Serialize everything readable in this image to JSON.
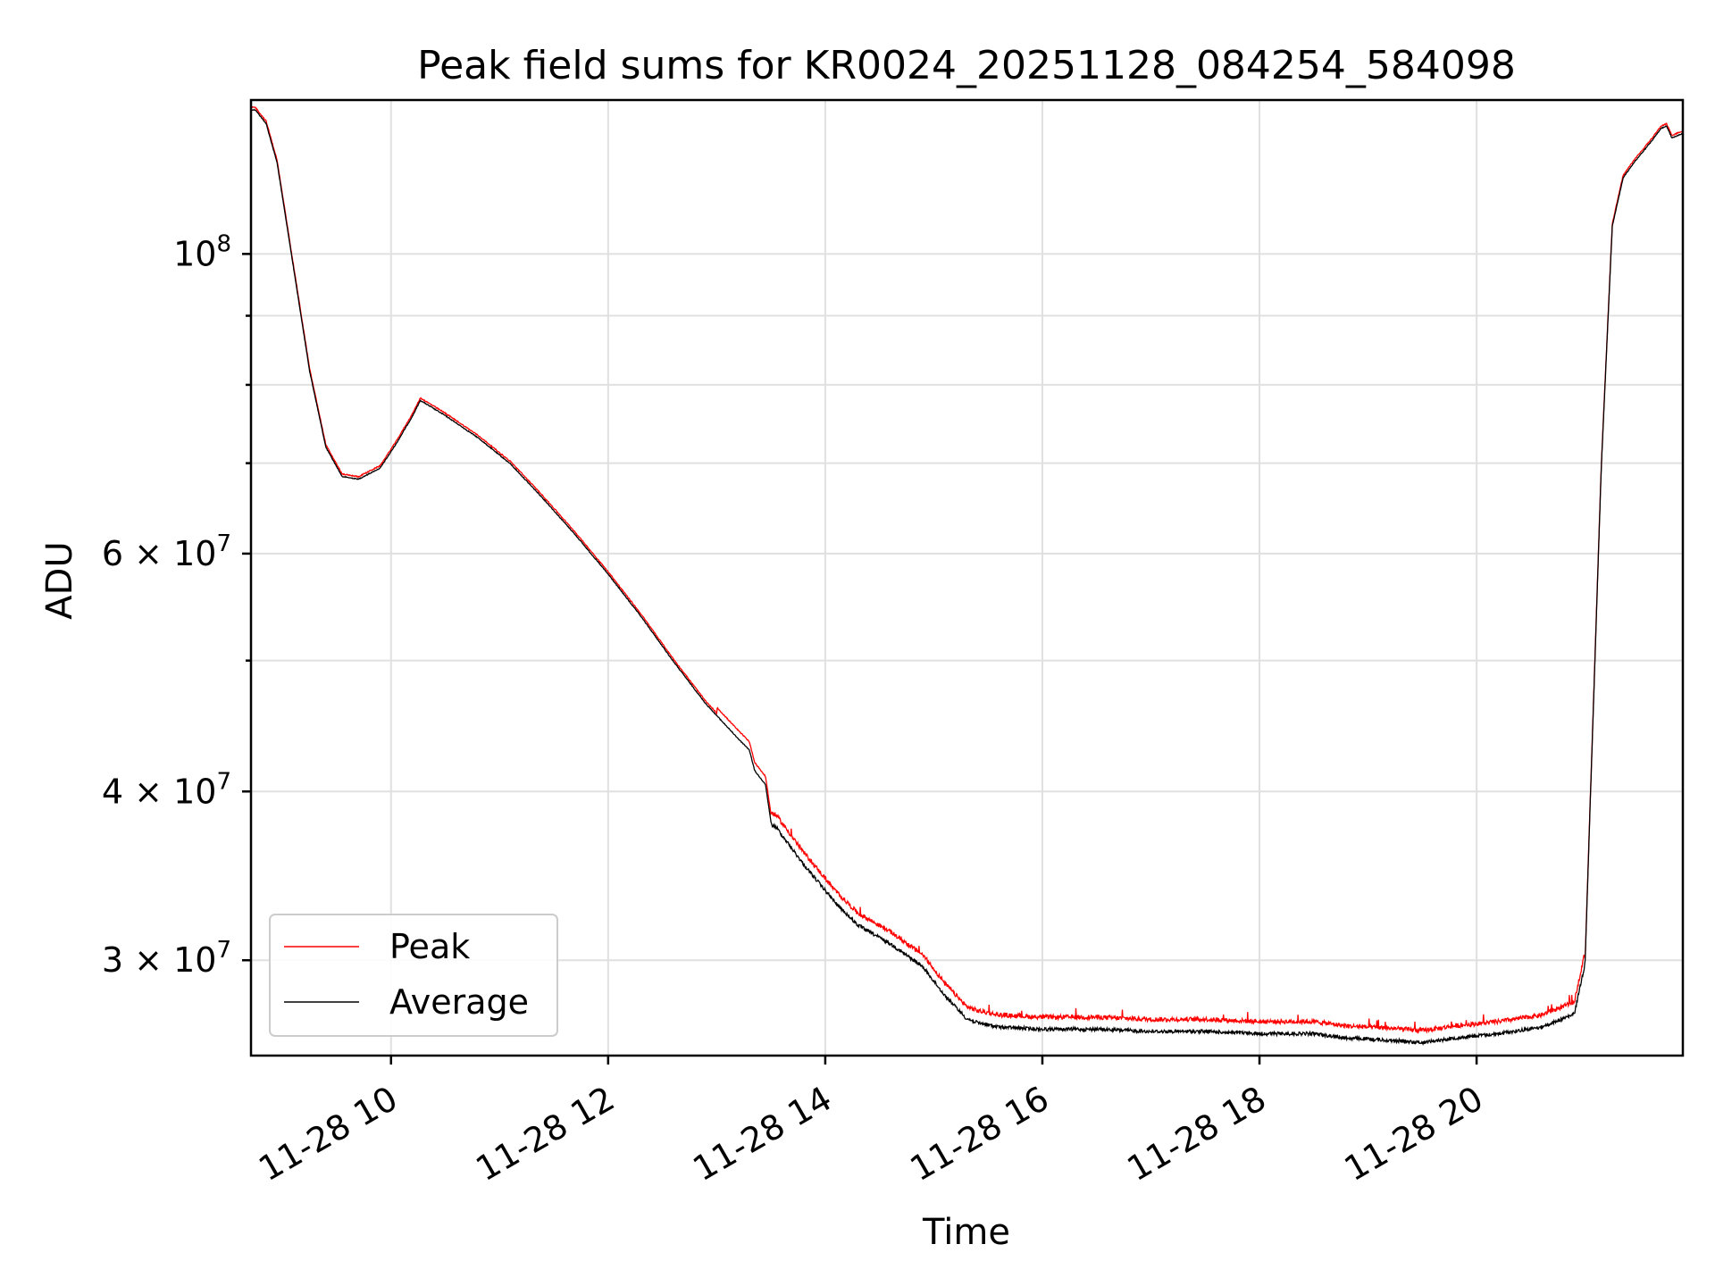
{
  "chart_data": {
    "type": "line",
    "title": "Peak field sums for KR0024_20251128_084254_584098",
    "xlabel": "Time",
    "ylabel": "ADU",
    "yscale": "log",
    "xlim_hours": [
      8.71,
      21.9
    ],
    "ylim": [
      25500000,
      130000000
    ],
    "grid": true,
    "x_ticks": [
      {
        "value": 10,
        "label": "11-28 10"
      },
      {
        "value": 12,
        "label": "11-28 12"
      },
      {
        "value": 14,
        "label": "11-28 14"
      },
      {
        "value": 16,
        "label": "11-28 16"
      },
      {
        "value": 18,
        "label": "11-28 18"
      },
      {
        "value": 20,
        "label": "11-28 20"
      }
    ],
    "y_ticks_major": [
      {
        "value": 100000000,
        "label": "10",
        "exp": "8",
        "mantissa": ""
      },
      {
        "value": 60000000,
        "label": "6 × 10",
        "exp": "7",
        "mantissa": "6"
      },
      {
        "value": 40000000,
        "label": "4 × 10",
        "exp": "7",
        "mantissa": "4"
      },
      {
        "value": 30000000,
        "label": "3 × 10",
        "exp": "7",
        "mantissa": "3"
      }
    ],
    "y_ticks_minor": [
      90000000,
      80000000,
      70000000,
      50000000
    ],
    "legend": {
      "location": "lower-left",
      "entries": [
        {
          "name": "Peak",
          "color": "#ff0000"
        },
        {
          "name": "Average",
          "color": "#000000"
        }
      ]
    },
    "series": [
      {
        "name": "Average",
        "color": "#000000",
        "x": [
          8.71,
          8.75,
          8.85,
          8.95,
          9.1,
          9.25,
          9.4,
          9.55,
          9.7,
          9.9,
          10.05,
          10.2,
          10.27,
          10.5,
          10.8,
          11.1,
          11.4,
          11.7,
          12.0,
          12.3,
          12.6,
          12.9,
          13.2,
          13.3,
          13.35,
          13.45,
          13.5,
          13.55,
          13.8,
          14.1,
          14.3,
          14.6,
          14.9,
          15.1,
          15.3,
          15.4,
          15.6,
          16.0,
          16.5,
          17.0,
          17.5,
          18.0,
          18.5,
          18.8,
          19.2,
          19.5,
          19.8,
          20.2,
          20.6,
          20.9,
          21.0,
          21.05,
          21.15,
          21.25,
          21.35,
          21.45,
          21.6,
          21.7,
          21.75,
          21.8,
          21.9
        ],
        "y": [
          128000000,
          128000000,
          125000000,
          117000000,
          98000000,
          82000000,
          72000000,
          68500000,
          68200000,
          69500000,
          72500000,
          76000000,
          78000000,
          76000000,
          73200000,
          70000000,
          66000000,
          62000000,
          58000000,
          54000000,
          50000000,
          46500000,
          43800000,
          43000000,
          41500000,
          40500000,
          38000000,
          37800000,
          35500000,
          33200000,
          32000000,
          31000000,
          29800000,
          28400000,
          27300000,
          27100000,
          26900000,
          26800000,
          26800000,
          26700000,
          26700000,
          26600000,
          26600000,
          26400000,
          26300000,
          26200000,
          26400000,
          26600000,
          26900000,
          27500000,
          30000000,
          40000000,
          70000000,
          105000000,
          114000000,
          117000000,
          121000000,
          124000000,
          124500000,
          122000000,
          123000000
        ]
      },
      {
        "name": "Peak",
        "color": "#ff0000",
        "offset_ratio": 1.012
      }
    ]
  }
}
